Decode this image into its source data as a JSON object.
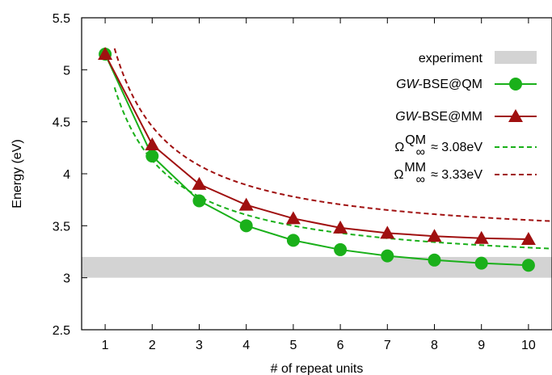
{
  "chart_data": {
    "type": "line",
    "xlabel": "# of repeat units",
    "ylabel": "Energy (eV)",
    "xlim": [
      0.5,
      10.5
    ],
    "ylim": [
      2.5,
      5.5
    ],
    "x_ticks": [
      "1",
      "2",
      "3",
      "4",
      "5",
      "6",
      "7",
      "8",
      "9",
      "10"
    ],
    "y_ticks": [
      "2.5",
      "3",
      "3.5",
      "4",
      "4.5",
      "5",
      "5.5"
    ],
    "grid": false,
    "legend_position": "top-right",
    "experiment": {
      "name": "experiment",
      "range": [
        3.0,
        3.2
      ],
      "color": "#d3d3d3"
    },
    "series": [
      {
        "name_italic": "GW",
        "name_rest": "-BSE@QM",
        "marker": "circle",
        "color": "#1ab01a",
        "x": [
          1,
          2,
          3,
          4,
          5,
          6,
          7,
          8,
          9,
          10
        ],
        "values": [
          5.15,
          4.17,
          3.74,
          3.5,
          3.36,
          3.27,
          3.21,
          3.17,
          3.14,
          3.12
        ]
      },
      {
        "name_italic": "GW",
        "name_rest": "-BSE@MM",
        "marker": "triangle",
        "color": "#a01010",
        "x": [
          1,
          2,
          3,
          4,
          5,
          6,
          7,
          8,
          9,
          10
        ],
        "values": [
          5.15,
          4.28,
          3.9,
          3.7,
          3.57,
          3.48,
          3.43,
          3.4,
          3.38,
          3.37
        ]
      }
    ],
    "fits": [
      {
        "symbol": "Ω",
        "sup": "QM",
        "sub": "∞",
        "text": "≈ 3.08eV",
        "color": "#1ab01a",
        "asymptote": 3.08,
        "coef": 2.1
      },
      {
        "symbol": "Ω",
        "sup": "MM",
        "sub": "∞",
        "text": "≈ 3.33eV",
        "color": "#a01010",
        "asymptote": 3.33,
        "coef": 2.25
      }
    ]
  }
}
